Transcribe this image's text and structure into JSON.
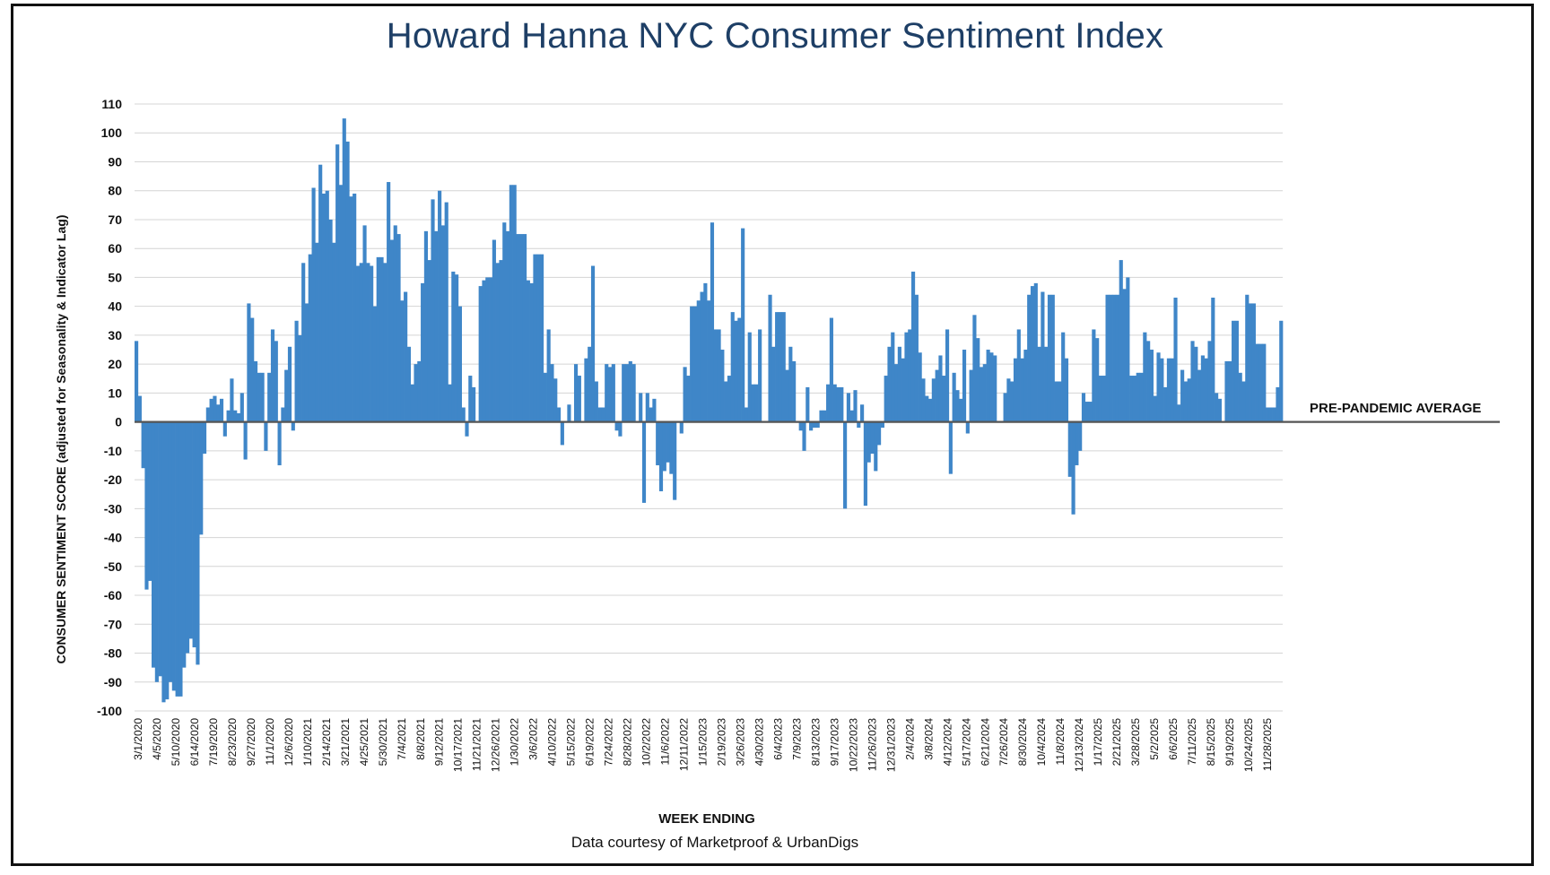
{
  "chart_data": {
    "type": "bar",
    "title": "Howard Hanna NYC Consumer Sentiment Index",
    "xlabel": "WEEK ENDING",
    "ylabel": "CONSUMER SENTIMENT SCORE (adjusted for Seasonality & Indicator Lag)",
    "source_note": "Data courtesy of Marketproof & UrbanDigs",
    "ylim": [
      -100,
      110
    ],
    "y_ticks": [
      110,
      100,
      90,
      80,
      70,
      60,
      50,
      40,
      30,
      20,
      10,
      0,
      -10,
      -20,
      -30,
      -40,
      -50,
      -60,
      -70,
      -80,
      -90,
      -100
    ],
    "grid": "horizontal",
    "bar_color": "#3f86c8",
    "reference_line": {
      "label": "PRE-PANDEMIC AVERAGE",
      "value": 0,
      "color": "#555555"
    },
    "x_tick_labels": [
      "3/1/2020",
      "4/5/2020",
      "5/10/2020",
      "6/14/2020",
      "7/19/2020",
      "8/23/2020",
      "9/27/2020",
      "11/1/2020",
      "12/6/2020",
      "1/10/2021",
      "2/14/2021",
      "3/21/2021",
      "4/25/2021",
      "5/30/2021",
      "7/4/2021",
      "8/8/2021",
      "9/12/2021",
      "10/17/2021",
      "11/21/2021",
      "12/26/2021",
      "1/30/2022",
      "3/6/2022",
      "4/10/2022",
      "5/15/2022",
      "6/19/2022",
      "7/24/2022",
      "8/28/2022",
      "10/2/2022",
      "11/6/2022",
      "12/11/2022",
      "1/15/2023",
      "2/19/2023",
      "3/26/2023",
      "4/30/2023",
      "6/4/2023",
      "7/9/2023",
      "8/13/2023",
      "9/17/2023",
      "10/22/2023",
      "11/26/2023",
      "12/31/2023",
      "2/4/2024",
      "3/8/2024",
      "4/12/2024",
      "5/17/2024",
      "6/21/2024",
      "7/26/2024",
      "8/30/2024",
      "10/4/2024",
      "11/8/2024",
      "12/13/2024",
      "1/17/2025",
      "2/21/2025",
      "3/28/2025",
      "5/2/2025",
      "6/6/2025",
      "7/11/2025",
      "8/15/2025",
      "9/19/2025",
      "10/24/2025",
      "11/28/2025"
    ],
    "values": [
      28,
      9,
      -16,
      -58,
      -55,
      -85,
      -90,
      -88,
      -97,
      -96,
      -90,
      -93,
      -95,
      -95,
      -85,
      -80,
      -75,
      -78,
      -84,
      -39,
      -11,
      5,
      8,
      9,
      6,
      8,
      -5,
      4,
      15,
      4,
      3,
      10,
      -13,
      41,
      36,
      21,
      17,
      17,
      -10,
      17,
      32,
      28,
      -15,
      5,
      18,
      26,
      -3,
      35,
      30,
      55,
      41,
      58,
      81,
      62,
      89,
      79,
      80,
      70,
      62,
      96,
      82,
      105,
      97,
      78,
      79,
      54,
      55,
      68,
      55,
      54,
      40,
      57,
      57,
      55,
      83,
      63,
      68,
      65,
      42,
      45,
      26,
      13,
      20,
      21,
      48,
      66,
      56,
      77,
      66,
      80,
      68,
      76,
      13,
      52,
      51,
      40,
      5,
      -5,
      16,
      12,
      0,
      47,
      49,
      50,
      50,
      63,
      55,
      56,
      69,
      66,
      82,
      82,
      65,
      65,
      65,
      49,
      48,
      58,
      58,
      58,
      17,
      32,
      20,
      15,
      5,
      -8,
      0,
      6,
      0,
      20,
      16,
      0,
      22,
      26,
      54,
      14,
      5,
      5,
      20,
      19,
      20,
      -3,
      -5,
      20,
      20,
      21,
      20,
      0,
      10,
      -28,
      10,
      5,
      8,
      -15,
      -24,
      -17,
      -14,
      -18,
      -27,
      0,
      -4,
      19,
      16,
      40,
      40,
      42,
      45,
      48,
      42,
      69,
      32,
      32,
      25,
      14,
      16,
      38,
      35,
      36,
      67,
      5,
      31,
      13,
      13,
      32,
      0,
      0,
      44,
      26,
      38,
      38,
      38,
      18,
      26,
      21,
      0,
      -3,
      -10,
      12,
      -3,
      -2,
      -2,
      4,
      4,
      13,
      36,
      13,
      12,
      12,
      -30,
      10,
      4,
      11,
      -2,
      6,
      -29,
      -14,
      -11,
      -17,
      -8,
      -2,
      16,
      26,
      31,
      20,
      26,
      22,
      31,
      32,
      52,
      44,
      24,
      15,
      9,
      8,
      15,
      18,
      23,
      16,
      32,
      -18,
      17,
      11,
      8,
      25,
      -4,
      18,
      37,
      29,
      19,
      20,
      25,
      24,
      23,
      0,
      0,
      10,
      15,
      14,
      22,
      32,
      22,
      25,
      44,
      47,
      48,
      26,
      45,
      26,
      44,
      44,
      14,
      14,
      31,
      22,
      -19,
      -32,
      -15,
      -10,
      10,
      7,
      7,
      32,
      29,
      16,
      16,
      44,
      44,
      44,
      44,
      56,
      46,
      50,
      16,
      16,
      17,
      17,
      31,
      28,
      25,
      9,
      24,
      22,
      12,
      22,
      22,
      43,
      6,
      18,
      14,
      15,
      28,
      26,
      18,
      23,
      22,
      28,
      43,
      10,
      8,
      0,
      21,
      21,
      35,
      35,
      17,
      14,
      44,
      41,
      41,
      27,
      27,
      27,
      5,
      5,
      5,
      12,
      35
    ]
  }
}
